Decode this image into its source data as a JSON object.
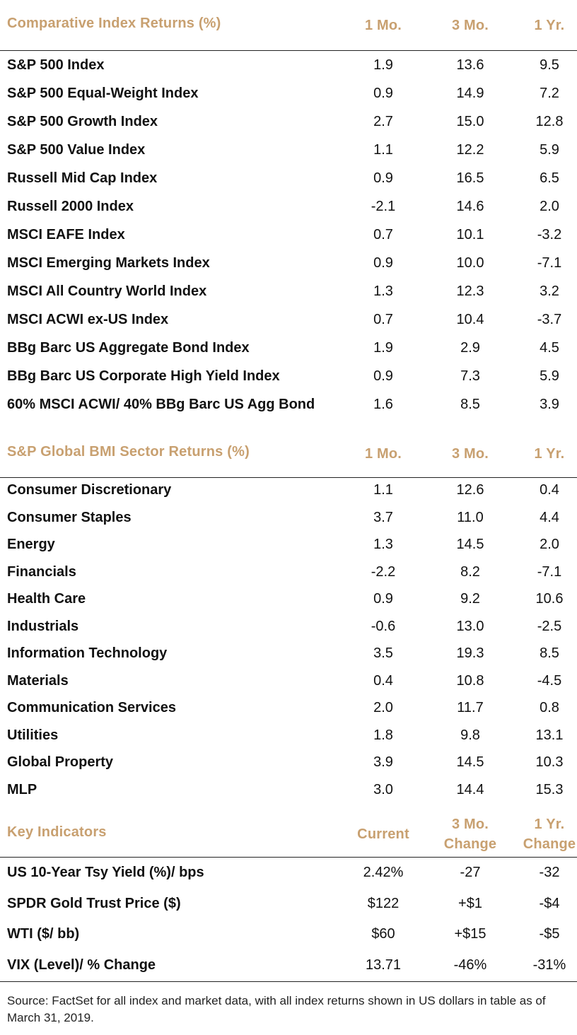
{
  "comparative": {
    "title": "Comparative  Index Returns  (%)",
    "cols": [
      "1 Mo.",
      "3 Mo.",
      "1 Yr."
    ],
    "rows": [
      {
        "name": "S&P 500 Index",
        "m1": "1.9",
        "m3": "13.6",
        "y1": "9.5"
      },
      {
        "name": "S&P 500 Equal-Weight Index",
        "m1": "0.9",
        "m3": "14.9",
        "y1": "7.2"
      },
      {
        "name": "S&P 500 Growth Index",
        "m1": "2.7",
        "m3": "15.0",
        "y1": "12.8"
      },
      {
        "name": "S&P 500 Value Index",
        "m1": "1.1",
        "m3": "12.2",
        "y1": "5.9"
      },
      {
        "name": "Russell Mid Cap Index",
        "m1": "0.9",
        "m3": "16.5",
        "y1": "6.5"
      },
      {
        "name": "Russell 2000 Index",
        "m1": "-2.1",
        "m3": "14.6",
        "y1": "2.0"
      },
      {
        "name": "MSCI EAFE Index",
        "m1": "0.7",
        "m3": "10.1",
        "y1": "-3.2"
      },
      {
        "name": "MSCI Emerging Markets Index",
        "m1": "0.9",
        "m3": "10.0",
        "y1": "-7.1"
      },
      {
        "name": "MSCI All Country World Index",
        "m1": "1.3",
        "m3": "12.3",
        "y1": "3.2"
      },
      {
        "name": "MSCI ACWI ex-US Index",
        "m1": "0.7",
        "m3": "10.4",
        "y1": "-3.7"
      },
      {
        "name": "BBg Barc US Aggregate Bond Index",
        "m1": "1.9",
        "m3": "2.9",
        "y1": "4.5"
      },
      {
        "name": "BBg Barc US Corporate High Yield Index",
        "m1": "0.9",
        "m3": "7.3",
        "y1": "5.9"
      },
      {
        "name": "60% MSCI ACWI/ 40% BBg Barc US Agg Bond",
        "m1": "1.6",
        "m3": "8.5",
        "y1": "3.9"
      }
    ]
  },
  "sector": {
    "title": "S&P Global  BMI Sector  Returns  (%)",
    "cols": [
      "1 Mo.",
      "3 Mo.",
      "1 Yr."
    ],
    "rows": [
      {
        "name": "Consumer Discretionary",
        "m1": "1.1",
        "m3": "12.6",
        "y1": "0.4"
      },
      {
        "name": "Consumer Staples",
        "m1": "3.7",
        "m3": "11.0",
        "y1": "4.4"
      },
      {
        "name": "Energy",
        "m1": "1.3",
        "m3": "14.5",
        "y1": "2.0"
      },
      {
        "name": "Financials",
        "m1": "-2.2",
        "m3": "8.2",
        "y1": "-7.1"
      },
      {
        "name": "Health Care",
        "m1": "0.9",
        "m3": "9.2",
        "y1": "10.6"
      },
      {
        "name": "Industrials",
        "m1": "-0.6",
        "m3": "13.0",
        "y1": "-2.5"
      },
      {
        "name": "Information Technology",
        "m1": "3.5",
        "m3": "19.3",
        "y1": "8.5"
      },
      {
        "name": "Materials",
        "m1": "0.4",
        "m3": "10.8",
        "y1": "-4.5"
      },
      {
        "name": "Communication Services",
        "m1": "2.0",
        "m3": "11.7",
        "y1": "0.8"
      },
      {
        "name": "Utilities",
        "m1": "1.8",
        "m3": "9.8",
        "y1": "13.1"
      },
      {
        "name": "Global Property",
        "m1": "3.9",
        "m3": "14.5",
        "y1": "10.3"
      },
      {
        "name": "MLP",
        "m1": "3.0",
        "m3": "14.4",
        "y1": "15.3"
      }
    ]
  },
  "indicators": {
    "title": "Key Indicators",
    "col_current": "Current",
    "col_3mo_line1": "3 Mo.",
    "col_3mo_line2": "Change",
    "col_1yr_line1": "1 Yr.",
    "col_1yr_line2": "Change",
    "rows": [
      {
        "name": "US 10-Year Tsy Yield (%)/ bps",
        "cur": "2.42%",
        "m3": "-27",
        "y1": "-32"
      },
      {
        "name": "SPDR Gold Trust Price ($)",
        "cur": "$122",
        "m3": "+$1",
        "y1": "-$4"
      },
      {
        "name": "WTI ($/ bb)",
        "cur": "$60",
        "m3": "+$15",
        "y1": "-$5"
      },
      {
        "name": "VIX (Level)/ % Change",
        "cur": "13.71",
        "m3": "-46%",
        "y1": "-31%"
      }
    ]
  },
  "footnote": "Source: FactSet for all index and market data, with all index returns shown in US dollars in table as of March 31, 2019.",
  "colors": {
    "header_gold": "#c8a070",
    "text": "#111111",
    "rule": "#222222"
  }
}
